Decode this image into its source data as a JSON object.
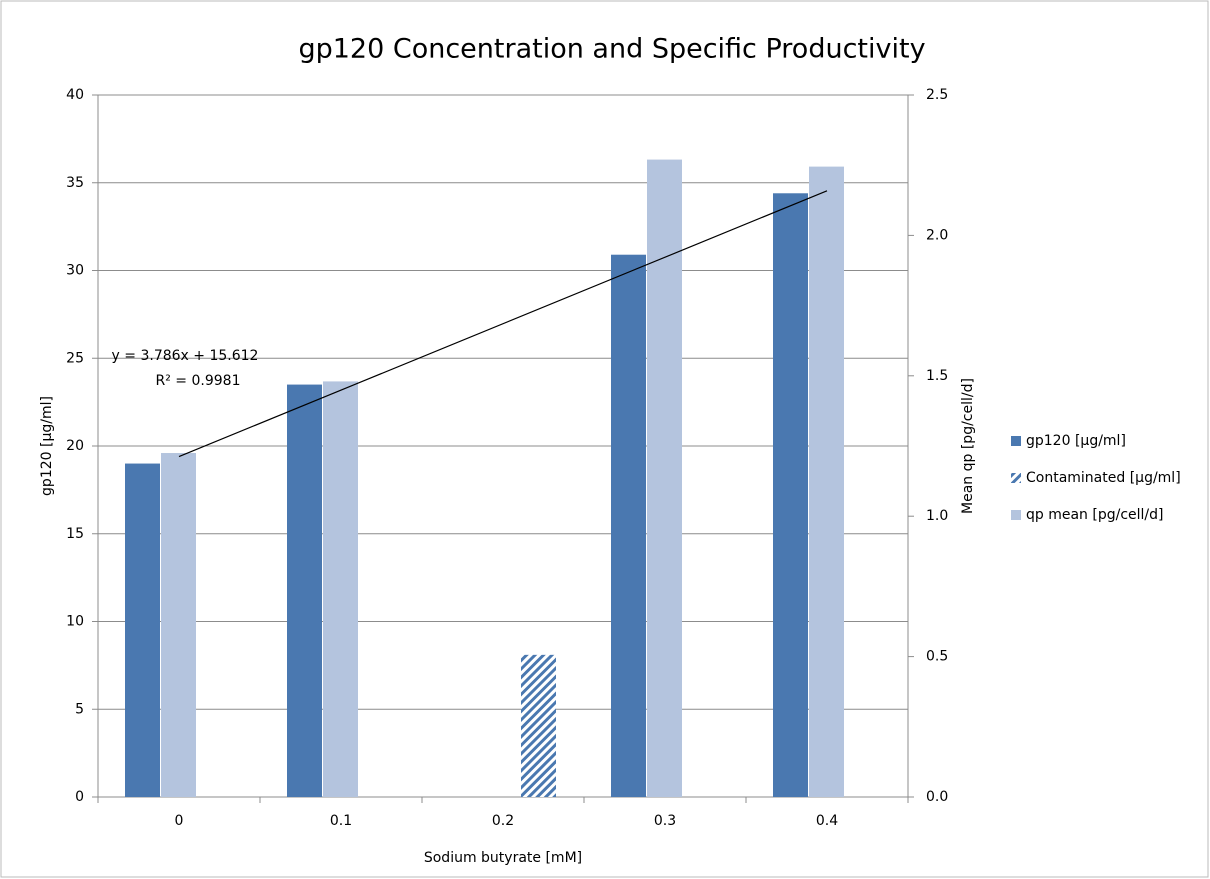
{
  "chart_data": {
    "type": "bar",
    "title": "gp120 Concentration and Specific Productivity",
    "xlabel": "Sodium butyrate [mM]",
    "ylabel": "gp120 [µg/ml]",
    "y2label": "Mean qp [pg/cell/d]",
    "categories": [
      "0",
      "0.1",
      "0.2",
      "0.3",
      "0.4"
    ],
    "series": [
      {
        "name": "gp120 [µg/ml]",
        "color": "#4a78b0",
        "values": [
          19.0,
          23.5,
          null,
          30.9,
          34.4
        ]
      },
      {
        "name": "Contaminated [µg/ml]",
        "color": "#4a78b0",
        "pattern": "hatch",
        "values": [
          null,
          null,
          8.1,
          null,
          null
        ]
      },
      {
        "name": "qp mean [pg/cell/d]",
        "color": "#b4c4de",
        "axis": "y2",
        "values": [
          1.225,
          1.48,
          null,
          2.27,
          2.245
        ]
      }
    ],
    "trendline": {
      "label": "y = 3.786x + 15.612",
      "r2_label": "R² = 0.9981",
      "slope": 3.786,
      "intercept": 15.612,
      "color": "#000000"
    },
    "ylim": [
      0,
      40
    ],
    "yticks": [
      0,
      5,
      10,
      15,
      20,
      25,
      30,
      35,
      40
    ],
    "y2lim": [
      0,
      2.5
    ],
    "y2ticks": [
      {
        "value": 0,
        "label": "0.0"
      },
      0.5,
      {
        "value": 1,
        "label": "1.0"
      },
      1.5,
      {
        "value": 2,
        "label": "2.0"
      },
      2.5
    ],
    "grid": true,
    "legend": "right"
  }
}
